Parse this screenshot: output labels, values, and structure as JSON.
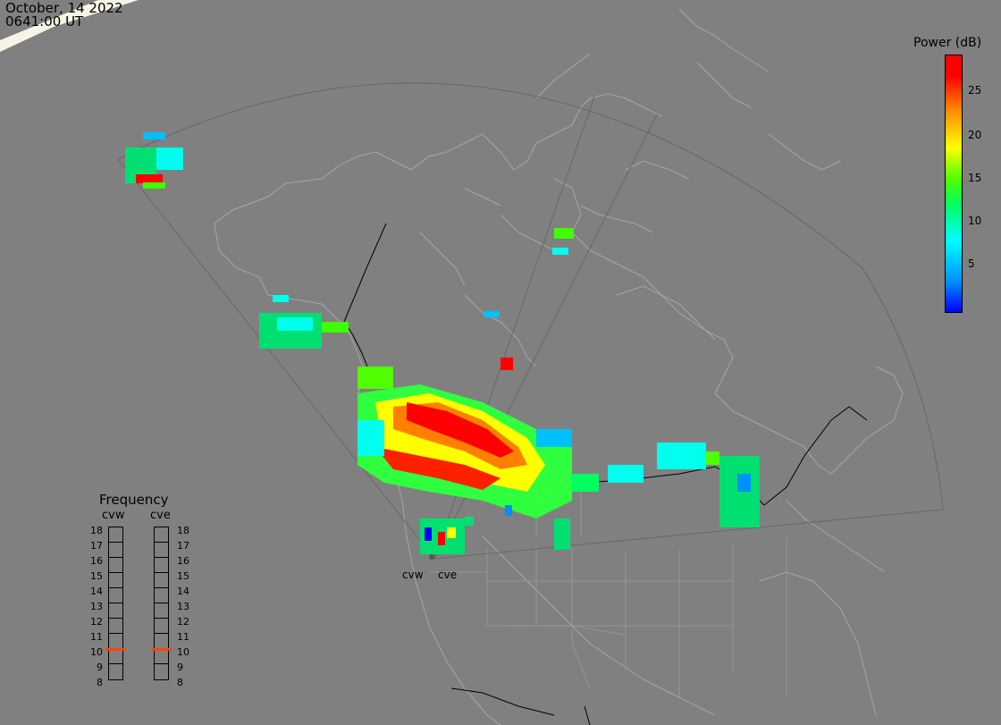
{
  "header": {
    "date": "October, 14 2022",
    "time": "0641:00 UT"
  },
  "colorbar": {
    "title": "Power (dB)",
    "ticks": [
      "25",
      "20",
      "15",
      "10",
      "5"
    ],
    "tick_values": [
      25,
      20,
      15,
      10,
      5
    ],
    "range": [
      0,
      30
    ]
  },
  "frequency": {
    "title": "Frequency",
    "radars": [
      "cvw",
      "cve"
    ],
    "levels": [
      "18",
      "17",
      "16",
      "15",
      "14",
      "13",
      "12",
      "11",
      "10",
      "9",
      "8"
    ],
    "selected": {
      "cvw": 10.5,
      "cve": 10.5
    },
    "marker_color": "#ff4500"
  },
  "sites": {
    "west": "cvw",
    "east": "cve"
  },
  "colors": {
    "background": "#808080",
    "land": "#a6a6a6",
    "border": "#000000"
  }
}
